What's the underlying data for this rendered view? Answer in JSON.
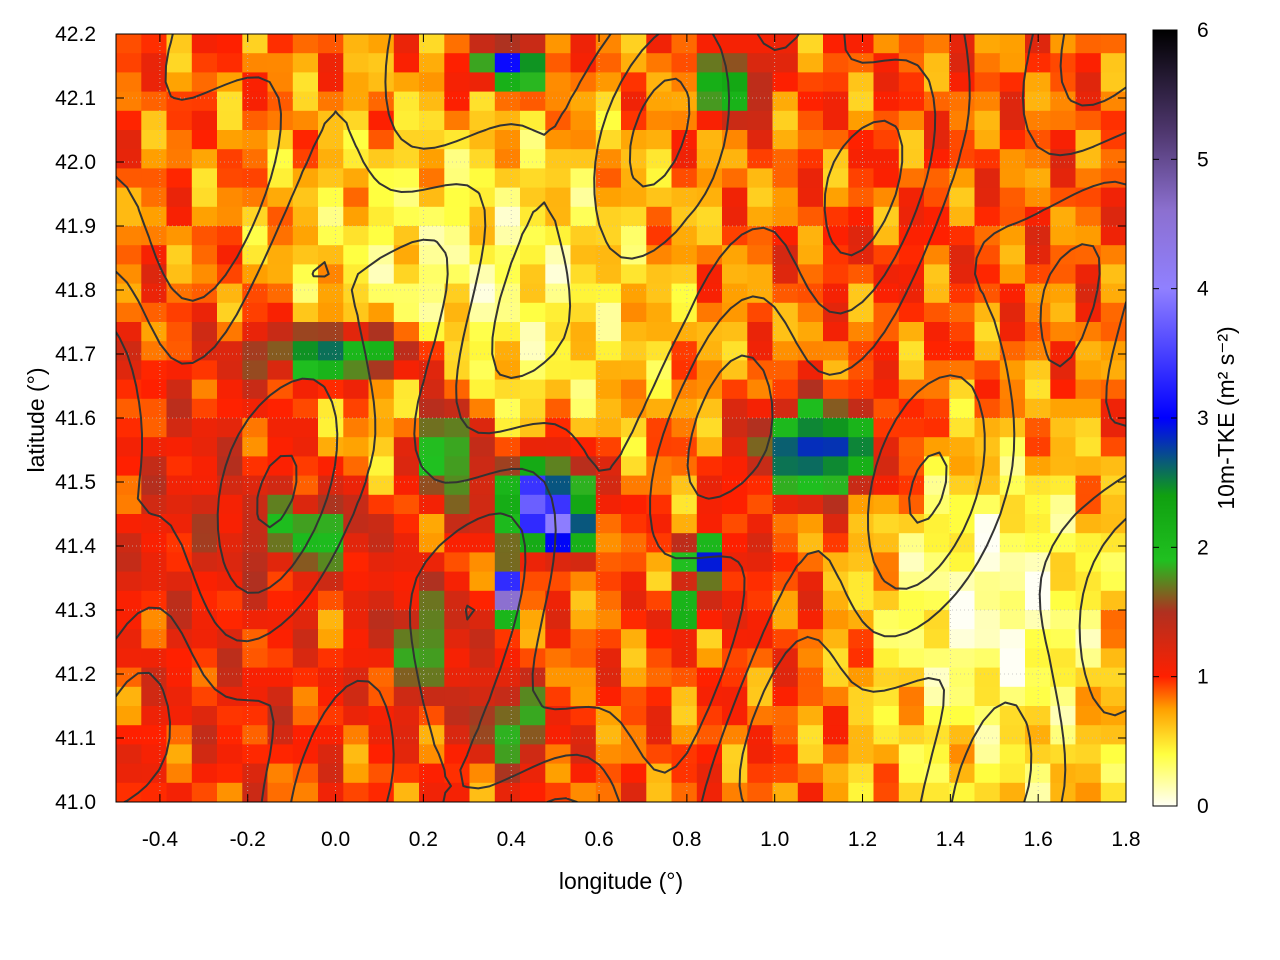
{
  "chart_data": {
    "type": "heatmap",
    "title": "",
    "xlabel": "longitude (°)",
    "ylabel": "latitude (°)",
    "colorbar_label": "10m-TKE (m² s⁻²)",
    "xlim": [
      -0.5,
      1.8
    ],
    "ylim": [
      41.0,
      42.2
    ],
    "clim": [
      0,
      6
    ],
    "x_ticks": [
      -0.4,
      -0.2,
      0.0,
      0.2,
      0.4,
      0.6,
      0.8,
      1.0,
      1.2,
      1.4,
      1.6,
      1.8
    ],
    "x_tick_labels": [
      "-0.4",
      "-0.2",
      "0.0",
      "0.2",
      "0.4",
      "0.6",
      "0.8",
      "1.0",
      "1.2",
      "1.4",
      "1.6",
      "1.8"
    ],
    "y_ticks": [
      41.0,
      41.1,
      41.2,
      41.3,
      41.4,
      41.5,
      41.6,
      41.7,
      41.8,
      41.9,
      42.0,
      42.1,
      42.2
    ],
    "y_tick_labels": [
      "41.0",
      "41.1",
      "41.2",
      "41.3",
      "41.4",
      "41.5",
      "41.6",
      "41.7",
      "41.8",
      "41.9",
      "42.0",
      "42.1",
      "42.2"
    ],
    "c_ticks": [
      0,
      1,
      2,
      3,
      4,
      5,
      6
    ],
    "c_tick_labels": [
      "0",
      "1",
      "2",
      "3",
      "4",
      "5",
      "6"
    ],
    "colormap": [
      {
        "v": 0.0,
        "color": "#fffff5"
      },
      {
        "v": 0.4,
        "color": "#ffff40"
      },
      {
        "v": 0.75,
        "color": "#ffa000"
      },
      {
        "v": 1.0,
        "color": "#ff2000"
      },
      {
        "v": 1.5,
        "color": "#b03020"
      },
      {
        "v": 1.9,
        "color": "#20c020"
      },
      {
        "v": 2.4,
        "color": "#10a010"
      },
      {
        "v": 3.0,
        "color": "#0000ff"
      },
      {
        "v": 4.0,
        "color": "#9080ff"
      },
      {
        "v": 4.6,
        "color": "#8c70d0"
      },
      {
        "v": 5.2,
        "color": "#503870"
      },
      {
        "v": 6.0,
        "color": "#000000"
      }
    ],
    "grid": true,
    "contours": true,
    "field_regions": [
      {
        "lon": 0.3,
        "lat": 41.8,
        "value": 0.3,
        "rx": 0.6,
        "ry": 0.35
      },
      {
        "lon": 1.5,
        "lat": 41.3,
        "value": 0.1,
        "rx": 0.35,
        "ry": 0.3
      },
      {
        "lon": 1.5,
        "lat": 41.05,
        "value": 0.45,
        "rx": 0.35,
        "ry": 0.1
      },
      {
        "lon": -0.3,
        "lat": 41.45,
        "value": 1.2,
        "rx": 0.3,
        "ry": 0.35
      },
      {
        "lon": -0.2,
        "lat": 41.15,
        "value": 1.1,
        "rx": 0.3,
        "ry": 0.15
      },
      {
        "lon": -0.05,
        "lat": 41.42,
        "value": 2.0,
        "rx": 0.16,
        "ry": 0.07
      },
      {
        "lon": 0.0,
        "lat": 41.7,
        "value": 2.5,
        "rx": 0.22,
        "ry": 0.05
      },
      {
        "lon": 0.25,
        "lat": 41.55,
        "value": 2.3,
        "rx": 0.08,
        "ry": 0.1
      },
      {
        "lon": 0.47,
        "lat": 41.47,
        "value": 3.5,
        "rx": 0.13,
        "ry": 0.08
      },
      {
        "lon": 0.5,
        "lat": 41.43,
        "value": 4.0,
        "rx": 0.07,
        "ry": 0.04
      },
      {
        "lon": 1.1,
        "lat": 41.55,
        "value": 3.1,
        "rx": 0.16,
        "ry": 0.08
      },
      {
        "lon": 0.2,
        "lat": 41.25,
        "value": 1.8,
        "rx": 0.12,
        "ry": 0.12
      },
      {
        "lon": 0.4,
        "lat": 41.12,
        "value": 2.0,
        "rx": 0.1,
        "ry": 0.08
      },
      {
        "lon": 0.38,
        "lat": 41.32,
        "value": 5.5,
        "rx": 0.03,
        "ry": 0.04
      },
      {
        "lon": 0.8,
        "lat": 41.3,
        "value": 3.6,
        "rx": 0.06,
        "ry": 0.02
      },
      {
        "lon": 0.85,
        "lat": 41.38,
        "value": 3.0,
        "rx": 0.07,
        "ry": 0.04
      },
      {
        "lon": 0.4,
        "lat": 42.15,
        "value": 3.0,
        "rx": 0.1,
        "ry": 0.04
      },
      {
        "lon": 0.9,
        "lat": 42.12,
        "value": 2.5,
        "rx": 0.08,
        "ry": 0.06
      },
      {
        "lon": 1.2,
        "lat": 41.85,
        "value": 1.0,
        "rx": 0.35,
        "ry": 0.06
      },
      {
        "lon": 1.0,
        "lat": 41.3,
        "value": 1.0,
        "rx": 0.12,
        "ry": 0.15
      }
    ]
  }
}
